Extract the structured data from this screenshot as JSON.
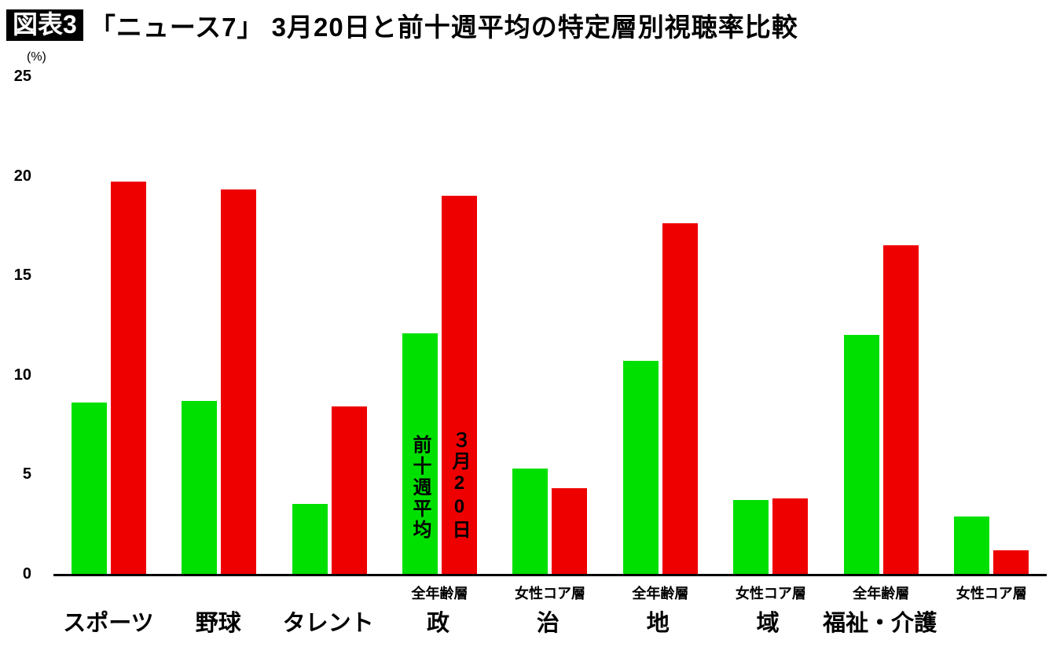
{
  "chart_data": {
    "type": "bar",
    "badge": "図表3",
    "title": "「ニュース7」 3月20日と前十週平均の特定層別視聴率比較",
    "unit_label": "(%)",
    "ylim": [
      0,
      25
    ],
    "yticks": [
      0,
      5,
      10,
      15,
      20,
      25
    ],
    "grid": false,
    "series": [
      {
        "name": "前十週平均",
        "vertical_label": "前十週平均",
        "color": "#00e000"
      },
      {
        "name": "3月20日",
        "vertical_label": "３月20日",
        "color": "#ee0000"
      }
    ],
    "groups": [
      {
        "label": "スポーツ",
        "sublabel": "",
        "values": [
          8.6,
          19.7
        ]
      },
      {
        "label": "野球",
        "sublabel": "",
        "values": [
          8.7,
          19.3
        ]
      },
      {
        "label": "タレント",
        "sublabel": "",
        "values": [
          3.5,
          8.4
        ]
      },
      {
        "label": "政",
        "sublabel": "全年齢層",
        "values": [
          12.1,
          19.0
        ],
        "annotate": true
      },
      {
        "label": "治",
        "sublabel": "女性コア層",
        "values": [
          5.3,
          4.3
        ]
      },
      {
        "label": "地",
        "sublabel": "全年齢層",
        "values": [
          10.7,
          17.6
        ]
      },
      {
        "label": "域",
        "sublabel": "女性コア層",
        "values": [
          3.7,
          3.8
        ]
      },
      {
        "label": "福祉・介護",
        "sublabel": "全年齢層",
        "values": [
          12.0,
          16.5
        ]
      },
      {
        "label": "",
        "sublabel": "女性コア層",
        "values": [
          2.9,
          1.2
        ]
      }
    ]
  }
}
